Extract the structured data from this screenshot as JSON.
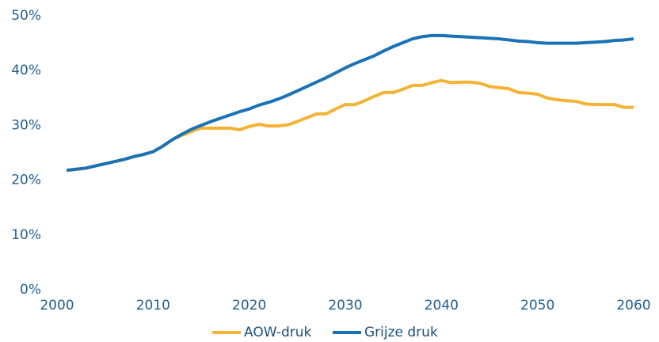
{
  "chart_data": {
    "type": "line",
    "x": [
      2001,
      2002,
      2003,
      2004,
      2005,
      2006,
      2007,
      2008,
      2009,
      2010,
      2011,
      2012,
      2013,
      2014,
      2015,
      2016,
      2017,
      2018,
      2019,
      2020,
      2021,
      2022,
      2023,
      2024,
      2025,
      2026,
      2027,
      2028,
      2029,
      2030,
      2031,
      2032,
      2033,
      2034,
      2035,
      2036,
      2037,
      2038,
      2039,
      2040,
      2041,
      2042,
      2043,
      2044,
      2045,
      2046,
      2047,
      2048,
      2049,
      2050,
      2051,
      2052,
      2053,
      2054,
      2055,
      2056,
      2057,
      2058,
      2059,
      2060
    ],
    "series": [
      {
        "name": "AOW-druk",
        "color": "#f5b335",
        "values": [
          21.8,
          22.0,
          22.2,
          22.6,
          23.0,
          23.4,
          23.8,
          24.3,
          24.7,
          25.2,
          26.2,
          27.4,
          28.2,
          28.9,
          29.5,
          29.5,
          29.5,
          29.5,
          29.2,
          29.8,
          30.2,
          29.9,
          29.9,
          30.1,
          30.7,
          31.4,
          32.1,
          32.1,
          33.0,
          33.8,
          33.8,
          34.5,
          35.3,
          36.0,
          36.0,
          36.6,
          37.3,
          37.3,
          37.8,
          38.2,
          37.8,
          37.9,
          37.9,
          37.7,
          37.1,
          36.9,
          36.7,
          36.0,
          35.9,
          35.7,
          35.0,
          34.7,
          34.5,
          34.4,
          33.9,
          33.8,
          33.8,
          33.8,
          33.3,
          33.3
        ]
      },
      {
        "name": "Grijze druk",
        "color": "#1a72b6",
        "values": [
          21.8,
          22.0,
          22.2,
          22.6,
          23.0,
          23.4,
          23.8,
          24.3,
          24.7,
          25.2,
          26.2,
          27.4,
          28.4,
          29.3,
          30.0,
          30.7,
          31.3,
          31.9,
          32.5,
          33.0,
          33.7,
          34.2,
          34.8,
          35.5,
          36.3,
          37.1,
          37.9,
          38.7,
          39.6,
          40.5,
          41.3,
          42.0,
          42.7,
          43.6,
          44.4,
          45.1,
          45.8,
          46.2,
          46.4,
          46.4,
          46.3,
          46.2,
          46.1,
          46.0,
          45.9,
          45.8,
          45.6,
          45.4,
          45.3,
          45.1,
          45.0,
          45.0,
          45.0,
          45.0,
          45.1,
          45.2,
          45.3,
          45.5,
          45.6,
          45.8
        ]
      }
    ],
    "xlim": [
      2000,
      2060
    ],
    "xticks": [
      2000,
      2010,
      2020,
      2030,
      2040,
      2050,
      2060
    ],
    "ylim": [
      0,
      50
    ],
    "yticks": [
      {
        "value": 0,
        "label": "0%"
      },
      {
        "value": 10,
        "label": "10%"
      },
      {
        "value": 20,
        "label": "20%"
      },
      {
        "value": 30,
        "label": "30%"
      },
      {
        "value": 40,
        "label": "40%"
      },
      {
        "value": 50,
        "label": "50%"
      }
    ],
    "grid": false,
    "legend": "bottom"
  }
}
